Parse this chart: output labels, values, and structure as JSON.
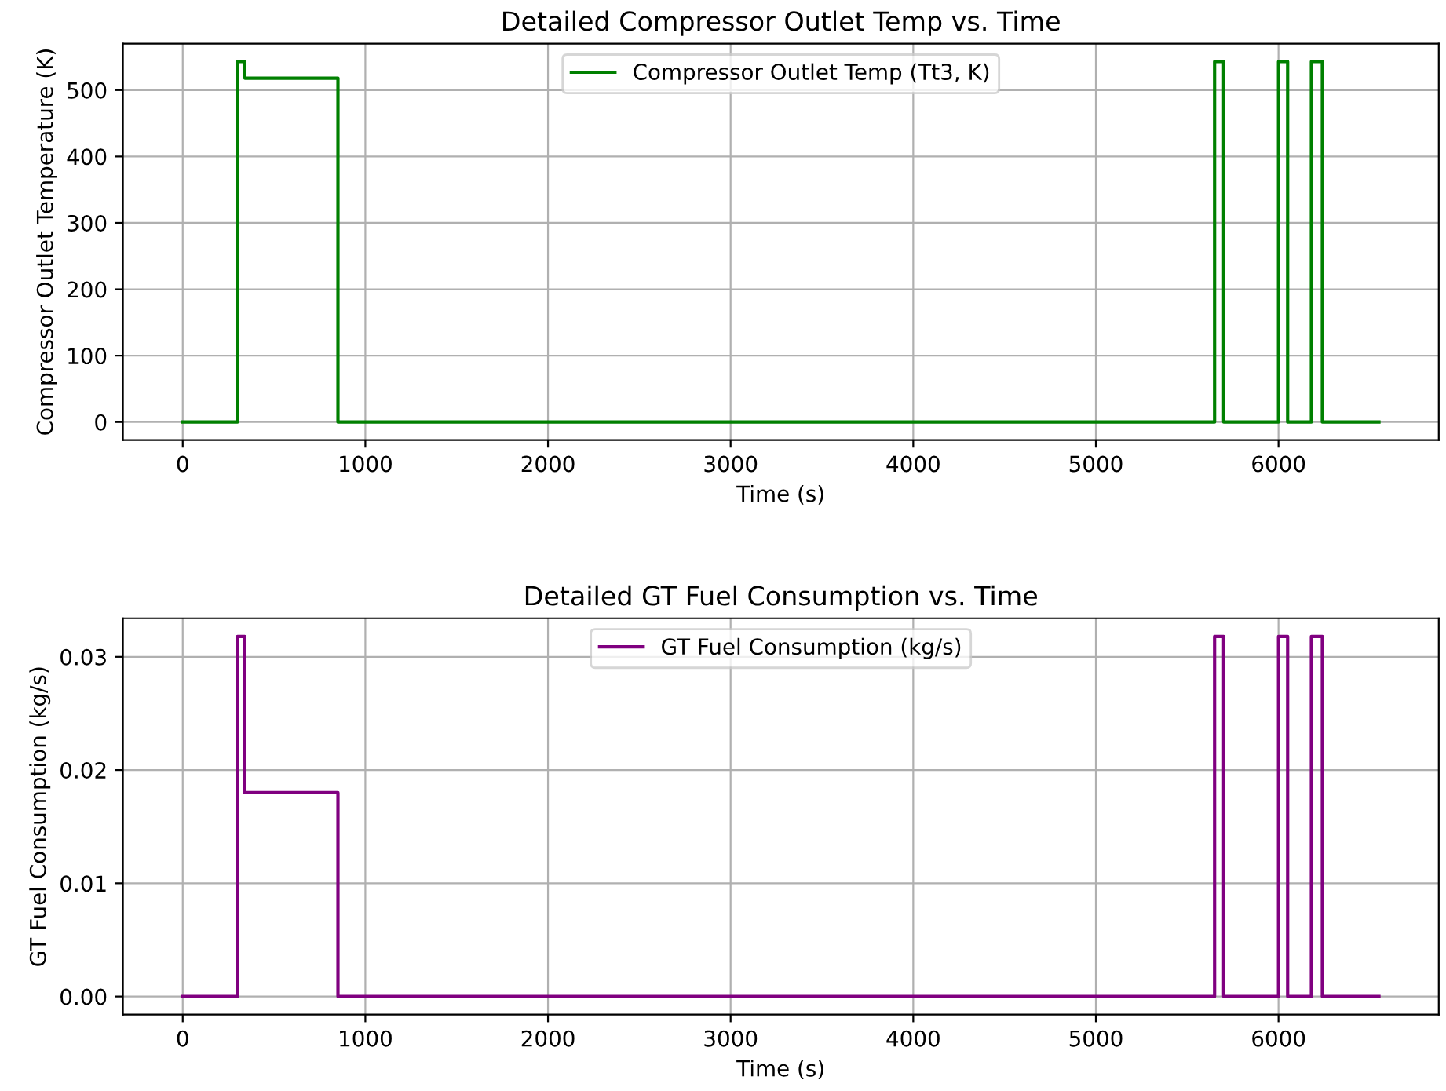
{
  "chart_data": [
    {
      "type": "step",
      "title": "Detailed Compressor Outlet Temp vs. Time",
      "xlabel": "Time (s)",
      "ylabel": "Compressor Outlet Temperature (K)",
      "x": [
        0,
        300,
        340,
        850,
        5650,
        5700,
        6000,
        6050,
        6180,
        6240,
        6550
      ],
      "series": [
        {
          "name": "Compressor Outlet Temp (Tt3, K)",
          "color": "#008000",
          "values": [
            0,
            543,
            518,
            0,
            543,
            0,
            543,
            0,
            543,
            0,
            0
          ]
        }
      ],
      "xlim": [
        -327.5,
        6877.5
      ],
      "xticks": [
        0,
        1000,
        2000,
        3000,
        4000,
        5000,
        6000
      ],
      "ylim": [
        -27,
        570
      ],
      "yticks": [
        0,
        100,
        200,
        300,
        400,
        500
      ],
      "grid": true,
      "legend": "top"
    },
    {
      "type": "step",
      "title": "Detailed GT Fuel Consumption vs. Time",
      "xlabel": "Time (s)",
      "ylabel": "GT Fuel Consumption (kg/s)",
      "x": [
        0,
        300,
        340,
        850,
        5650,
        5700,
        6000,
        6050,
        6180,
        6240,
        6550
      ],
      "series": [
        {
          "name": "GT Fuel Consumption (kg/s)",
          "color": "#800080",
          "values": [
            0,
            0.0318,
            0.018,
            0,
            0.0318,
            0,
            0.0318,
            0,
            0.0318,
            0,
            0
          ]
        }
      ],
      "xlim": [
        -327.5,
        6877.5
      ],
      "xticks": [
        0,
        1000,
        2000,
        3000,
        4000,
        5000,
        6000
      ],
      "ylim": [
        -0.0016,
        0.0334
      ],
      "yticks": [
        {
          "value": 0,
          "label": "0.00"
        },
        {
          "value": 0.01,
          "label": "0.01"
        },
        {
          "value": 0.02,
          "label": "0.02"
        },
        {
          "value": 0.03,
          "label": "0.03"
        }
      ],
      "grid": true,
      "legend": "top"
    }
  ]
}
